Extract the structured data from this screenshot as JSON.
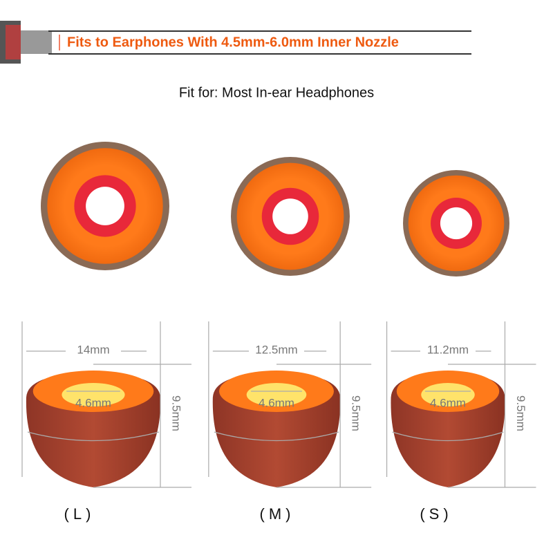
{
  "banner": {
    "text": "Fits to Earphones With 4.5mm-6.0mm Inner Nozzle"
  },
  "subtitle": "Fit for: Most In-ear Headphones",
  "tips": [
    {
      "width": "14mm",
      "bore": "4.6mm",
      "height": "9.5mm",
      "size": "(L)"
    },
    {
      "width": "12.5mm",
      "bore": "4.6mm",
      "height": "9.5mm",
      "size": "(M)"
    },
    {
      "width": "11.2mm",
      "bore": "4.6mm",
      "height": "9.5mm",
      "size": "(S)"
    }
  ]
}
